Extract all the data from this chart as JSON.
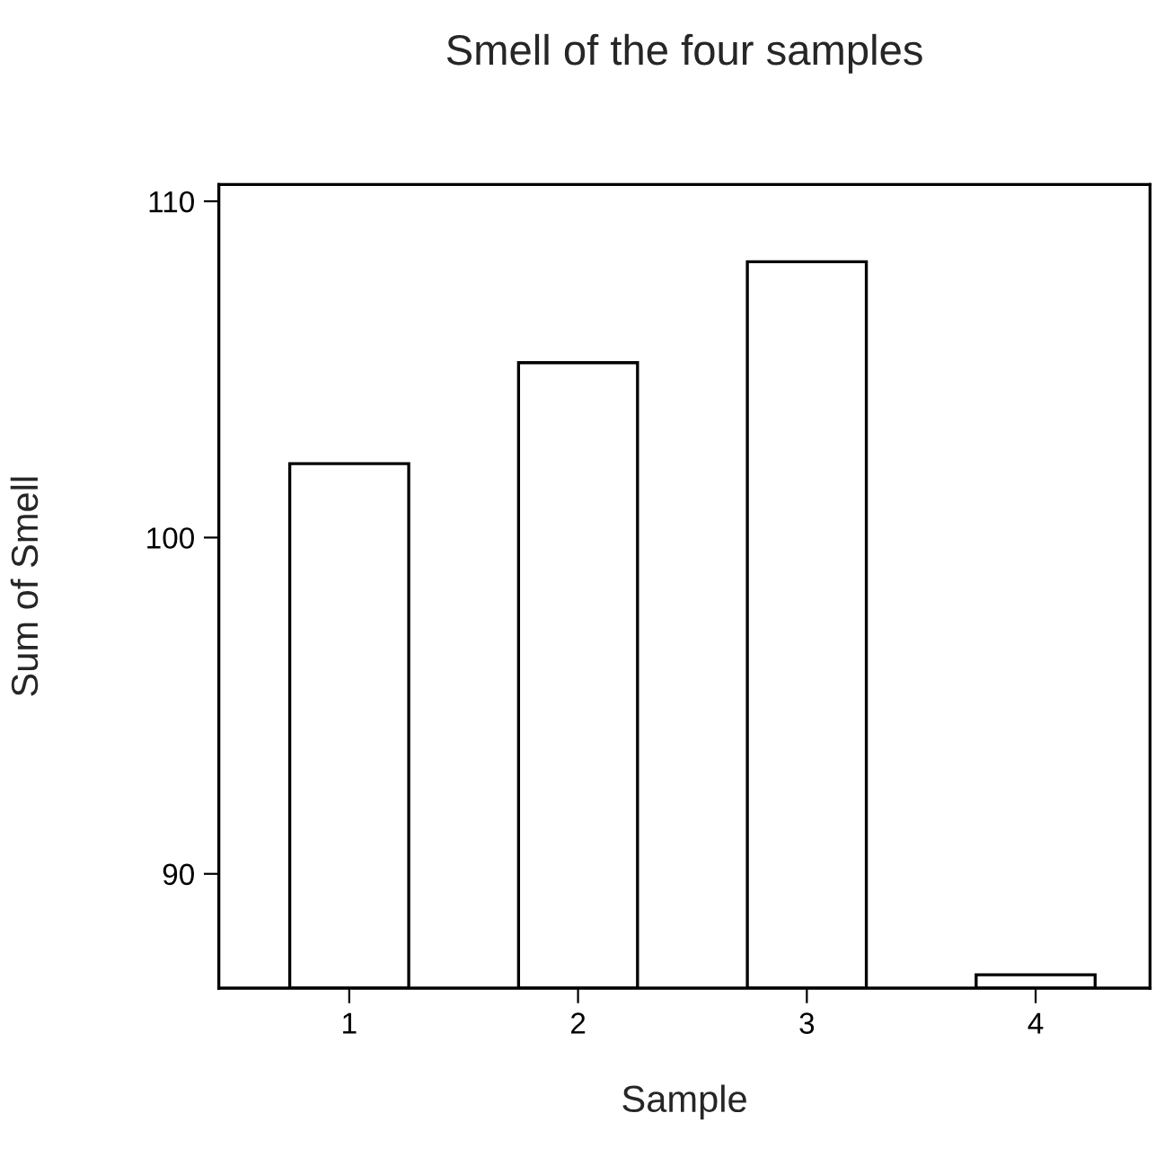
{
  "chart_data": {
    "type": "bar",
    "title": "Smell of the four samples",
    "xlabel": "Sample",
    "ylabel": "Sum of Smell",
    "categories": [
      "1",
      "2",
      "3",
      "4"
    ],
    "values": [
      102.2,
      105.2,
      108.2,
      87.0
    ],
    "color": "#ffffff",
    "ylim": [
      86.6,
      110.5
    ],
    "yticks": [
      90,
      100,
      110
    ],
    "grid": false
  }
}
